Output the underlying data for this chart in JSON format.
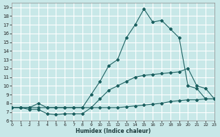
{
  "bg_color": "#c8e8e8",
  "grid_color": "#ffffff",
  "line_color": "#1a5f5f",
  "xlabel": "Humidex (Indice chaleur)",
  "xlim": [
    0,
    23
  ],
  "ylim": [
    6,
    19.5
  ],
  "yticks": [
    6,
    7,
    8,
    9,
    10,
    11,
    12,
    13,
    14,
    15,
    16,
    17,
    18,
    19
  ],
  "xticks": [
    0,
    1,
    2,
    3,
    4,
    5,
    6,
    7,
    8,
    9,
    10,
    11,
    12,
    13,
    14,
    15,
    16,
    17,
    18,
    19,
    20,
    21,
    22,
    23
  ],
  "line1_x": [
    0,
    1,
    2,
    3,
    4,
    5,
    6,
    7,
    8,
    9,
    10,
    11,
    12,
    13,
    14,
    15,
    16,
    17,
    18,
    19,
    20,
    21,
    22,
    23
  ],
  "line1_y": [
    7.5,
    7.5,
    7.3,
    7.3,
    6.8,
    6.7,
    6.8,
    6.8,
    6.8,
    7.5,
    7.5,
    7.5,
    7.5,
    7.6,
    7.7,
    7.8,
    7.9,
    8.0,
    8.2,
    8.3,
    8.4,
    8.4,
    8.5,
    8.5
  ],
  "line2_x": [
    0,
    1,
    2,
    3,
    4,
    5,
    6,
    7,
    8,
    9,
    10,
    11,
    12,
    13,
    14,
    15,
    16,
    17,
    18,
    19,
    20,
    21,
    22,
    23
  ],
  "line2_y": [
    7.5,
    7.5,
    7.5,
    8.0,
    7.5,
    7.5,
    7.5,
    7.5,
    7.5,
    7.5,
    8.5,
    9.5,
    10.0,
    10.5,
    11.0,
    11.2,
    11.3,
    11.4,
    11.5,
    11.6,
    12.0,
    10.0,
    9.7,
    8.5
  ],
  "line3_x": [
    0,
    1,
    2,
    3,
    4,
    5,
    6,
    7,
    8,
    9,
    10,
    11,
    12,
    13,
    14,
    15,
    16,
    17,
    18,
    19,
    20,
    21,
    22,
    23
  ],
  "line3_y": [
    7.5,
    7.5,
    7.5,
    7.5,
    7.5,
    7.5,
    7.5,
    7.5,
    7.5,
    9.0,
    10.5,
    12.3,
    13.0,
    15.5,
    17.0,
    18.8,
    17.3,
    17.5,
    16.5,
    15.5,
    10.0,
    9.7,
    8.5,
    8.5
  ]
}
